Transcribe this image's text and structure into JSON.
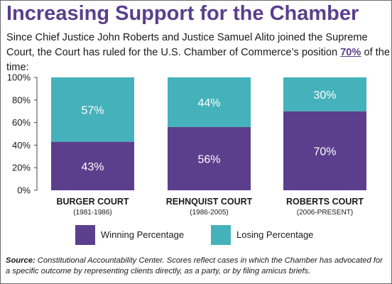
{
  "header": {
    "title": "Increasing Support for the Chamber",
    "subtitle_before": "Since Chief Justice John Roberts and Justice Samuel Alito joined the Supreme Court, the Court has ruled for the U.S. Chamber of Commerce’s position ",
    "subtitle_highlight": "70%",
    "subtitle_after": " of the time:"
  },
  "legend": {
    "winning_label": "Winning Percentage",
    "losing_label": "Losing Percentage"
  },
  "colors": {
    "winning": "#5b3f8c",
    "losing": "#45b2bb",
    "title": "#5b3f8c"
  },
  "footnote": {
    "source_label": "Source:",
    "text": " Constitutional Accountability Center. Scores reflect cases in which the Chamber has advocated for a specific outcome by representing clients directly, as a party, or by filing amicus briefs."
  },
  "chart_data": {
    "type": "bar",
    "stacked": true,
    "categories": [
      "BURGER COURT",
      "REHNQUIST COURT",
      "ROBERTS COURT"
    ],
    "category_sublabels": [
      "(1981-1986)",
      "(1986-2005)",
      "(2006-PRESENT)"
    ],
    "series": [
      {
        "name": "Winning Percentage",
        "values": [
          43,
          56,
          70
        ],
        "labels": [
          "43%",
          "56%",
          "70%"
        ]
      },
      {
        "name": "Losing Percentage",
        "values": [
          57,
          44,
          30
        ],
        "labels": [
          "57%",
          "44%",
          "30%"
        ]
      }
    ],
    "ylim": [
      0,
      100
    ],
    "yticks": [
      0,
      20,
      40,
      60,
      80,
      100
    ],
    "ytick_labels": [
      "0%",
      "20%",
      "40%",
      "60%",
      "80%",
      "100%"
    ],
    "grid": false,
    "legend_position": "bottom"
  }
}
